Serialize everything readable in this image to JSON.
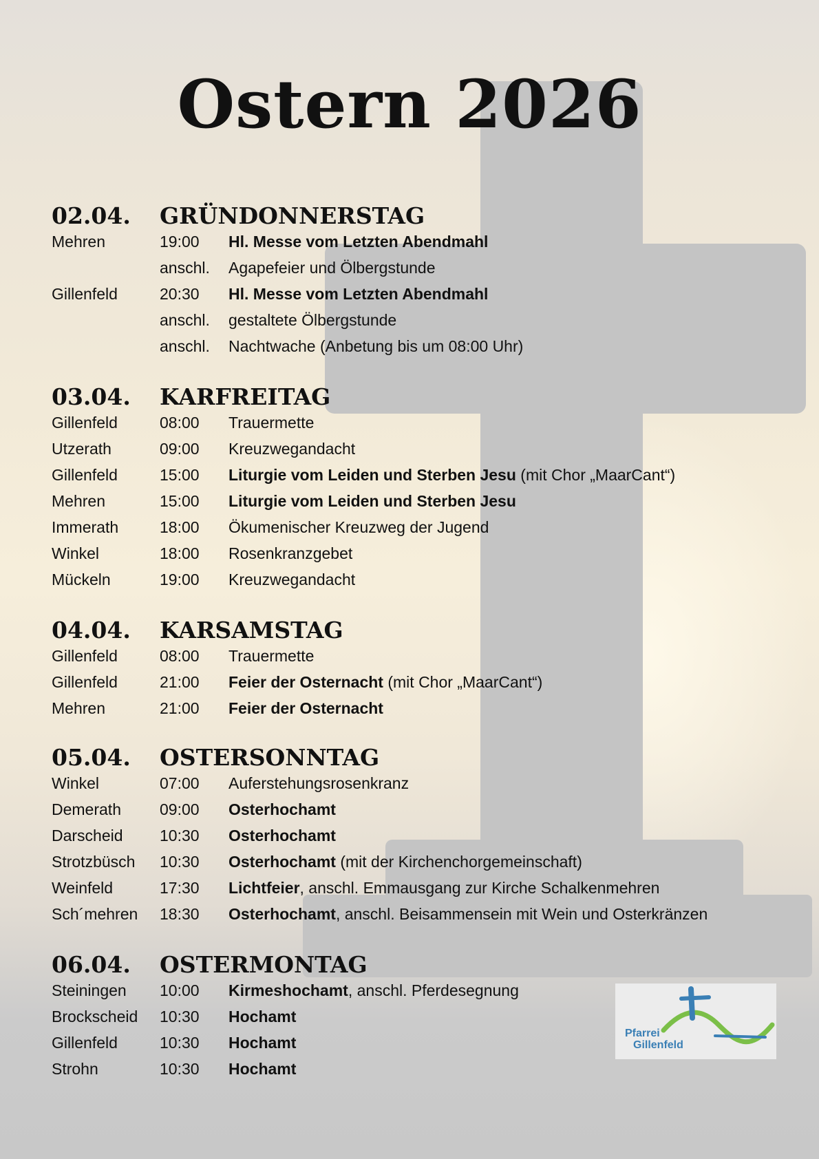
{
  "title": "Ostern 2026",
  "colors": {
    "text": "#111111",
    "cross": "#c4c4c4",
    "logo_blue": "#3a7fb5",
    "logo_green": "#7bbf48"
  },
  "logo": {
    "text_line1": "Pfarrei",
    "text_line2": "Gillenfeld"
  },
  "days": [
    {
      "date": "02.04.",
      "name": "GRÜNDONNERSTAG",
      "rows": [
        {
          "place": "Mehren",
          "time": "19:00",
          "desc": [
            {
              "text": "Hl. Messe vom Letzten Abendmahl",
              "bold": true
            }
          ]
        },
        {
          "place": "",
          "time": "anschl.",
          "desc": [
            {
              "text": "Agapefeier und Ölbergstunde",
              "bold": false
            }
          ]
        },
        {
          "place": "Gillenfeld",
          "time": "20:30",
          "desc": [
            {
              "text": "Hl. Messe vom Letzten Abendmahl",
              "bold": true
            }
          ]
        },
        {
          "place": "",
          "time": "anschl.",
          "desc": [
            {
              "text": "gestaltete Ölbergstunde",
              "bold": false
            }
          ]
        },
        {
          "place": "",
          "time": "anschl.",
          "desc": [
            {
              "text": "Nachtwache (Anbetung bis um 08:00 Uhr)",
              "bold": false
            }
          ]
        }
      ]
    },
    {
      "date": "03.04.",
      "name": "KARFREITAG",
      "rows": [
        {
          "place": "Gillenfeld",
          "time": "08:00",
          "desc": [
            {
              "text": "Trauermette",
              "bold": false
            }
          ]
        },
        {
          "place": "Utzerath",
          "time": "09:00",
          "desc": [
            {
              "text": "Kreuzwegandacht",
              "bold": false
            }
          ]
        },
        {
          "place": "Gillenfeld",
          "time": "15:00",
          "desc": [
            {
              "text": "Liturgie vom Leiden und Sterben Jesu",
              "bold": true
            },
            {
              "text": " (mit Chor „MaarCant“)",
              "bold": false
            }
          ]
        },
        {
          "place": "Mehren",
          "time": "15:00",
          "desc": [
            {
              "text": "Liturgie vom Leiden und Sterben Jesu",
              "bold": true
            }
          ]
        },
        {
          "place": "Immerath",
          "time": "18:00",
          "desc": [
            {
              "text": "Ökumenischer Kreuzweg der Jugend",
              "bold": false
            }
          ]
        },
        {
          "place": "Winkel",
          "time": "18:00",
          "desc": [
            {
              "text": "Rosenkranzgebet",
              "bold": false
            }
          ]
        },
        {
          "place": "Mückeln",
          "time": "19:00",
          "desc": [
            {
              "text": "Kreuzwegandacht",
              "bold": false
            }
          ]
        }
      ]
    },
    {
      "date": "04.04.",
      "name": "KARSAMSTAG",
      "rows": [
        {
          "place": "Gillenfeld",
          "time": "08:00",
          "desc": [
            {
              "text": "Trauermette",
              "bold": false
            }
          ]
        },
        {
          "place": "Gillenfeld",
          "time": "21:00",
          "desc": [
            {
              "text": "Feier der Osternacht",
              "bold": true
            },
            {
              "text": " (mit Chor „MaarCant“)",
              "bold": false
            }
          ]
        },
        {
          "place": "Mehren",
          "time": "21:00",
          "desc": [
            {
              "text": "Feier der Osternacht",
              "bold": true
            }
          ]
        }
      ]
    },
    {
      "date": "05.04.",
      "name": "OSTERSONNTAG",
      "rows": [
        {
          "place": "Winkel",
          "time": "07:00",
          "desc": [
            {
              "text": "Auferstehungsrosenkranz",
              "bold": false
            }
          ]
        },
        {
          "place": "Demerath",
          "time": "09:00",
          "desc": [
            {
              "text": "Osterhochamt",
              "bold": true
            }
          ]
        },
        {
          "place": "Darscheid",
          "time": "10:30",
          "desc": [
            {
              "text": "Osterhochamt",
              "bold": true
            }
          ]
        },
        {
          "place": "Strotzbüsch",
          "time": "10:30",
          "desc": [
            {
              "text": "Osterhochamt",
              "bold": true
            },
            {
              "text": " (mit der Kirchenchorgemeinschaft)",
              "bold": false
            }
          ]
        },
        {
          "place": "Weinfeld",
          "time": "17:30",
          "desc": [
            {
              "text": "Lichtfeier",
              "bold": true
            },
            {
              "text": ", anschl. Emmausgang zur Kirche Schalkenmehren",
              "bold": false
            }
          ]
        },
        {
          "place": "Sch´mehren",
          "time": "18:30",
          "desc": [
            {
              "text": "Osterhochamt",
              "bold": true
            },
            {
              "text": ", anschl. Beisammensein mit Wein und Osterkränzen",
              "bold": false
            }
          ]
        }
      ]
    },
    {
      "date": "06.04.",
      "name": "OSTERMONTAG",
      "rows": [
        {
          "place": "Steiningen",
          "time": "10:00",
          "desc": [
            {
              "text": "Kirmeshochamt",
              "bold": true
            },
            {
              "text": ", anschl. Pferdesegnung",
              "bold": false
            }
          ]
        },
        {
          "place": "Brockscheid",
          "time": "10:30",
          "desc": [
            {
              "text": "Hochamt",
              "bold": true
            }
          ]
        },
        {
          "place": "Gillenfeld",
          "time": "10:30",
          "desc": [
            {
              "text": "Hochamt",
              "bold": true
            }
          ]
        },
        {
          "place": "Strohn",
          "time": "10:30",
          "desc": [
            {
              "text": "Hochamt",
              "bold": true
            }
          ]
        }
      ]
    }
  ]
}
